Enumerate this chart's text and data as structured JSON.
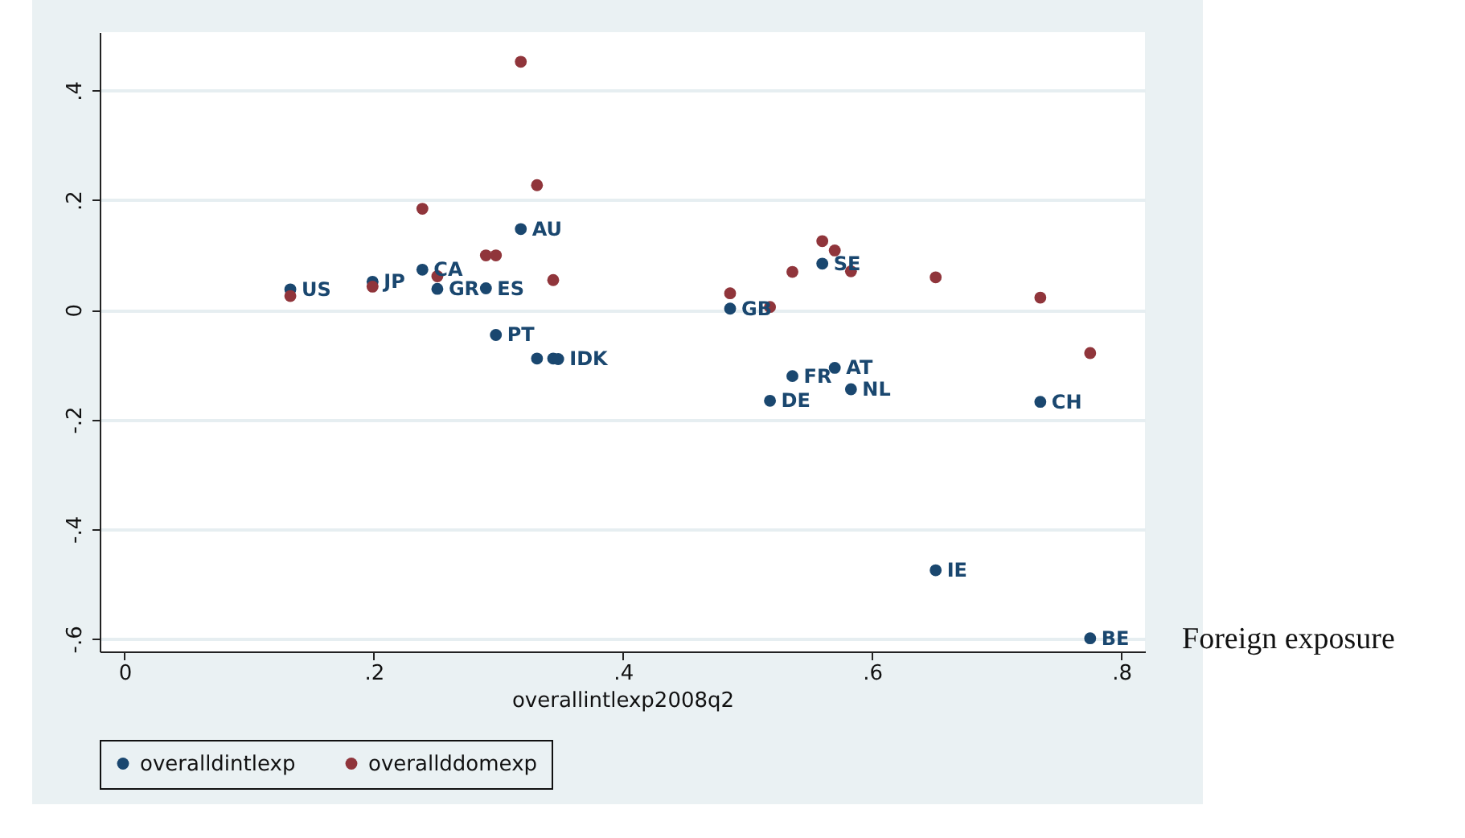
{
  "chart_data": {
    "type": "scatter",
    "xlabel": "overallintlexp2008q2",
    "x": [
      0.133,
      0.199,
      0.239,
      0.251,
      0.29,
      0.298,
      0.318,
      0.331,
      0.344,
      0.348,
      0.486,
      0.518,
      0.536,
      0.56,
      0.57,
      0.583,
      0.651,
      0.735,
      0.775
    ],
    "series": [
      {
        "name": "overalldintlexp",
        "color": "#1a476f",
        "values": [
          0.037,
          0.051,
          0.073,
          0.038,
          0.039,
          -0.046,
          0.147,
          -0.089,
          -0.089,
          -0.09,
          0.002,
          -0.166,
          -0.121,
          0.084,
          -0.106,
          -0.145,
          -0.475,
          -0.168,
          -0.599
        ]
      },
      {
        "name": "overallddomexp",
        "color": "#90353b",
        "values": [
          0.025,
          0.042,
          0.184,
          0.061,
          0.099,
          0.099,
          0.452,
          0.227,
          0.054,
          null,
          0.03,
          0.005,
          0.069,
          0.125,
          0.108,
          0.07,
          0.059,
          0.022,
          -0.079
        ]
      }
    ],
    "xlim": [
      -0.02,
      0.819
    ],
    "ylim": [
      -0.623,
      0.506
    ],
    "xticks": [
      0,
      {
        "value": 0.2,
        "label": ".2"
      },
      {
        "value": 0.4,
        "label": ".4"
      },
      {
        "value": 0.6,
        "label": ".6"
      },
      {
        "value": 0.8,
        "label": ".8"
      }
    ],
    "yticks": [
      {
        "value": -0.6,
        "label": "-.6"
      },
      {
        "value": -0.4,
        "label": "-.4"
      },
      {
        "value": -0.2,
        "label": "-.2"
      },
      0,
      {
        "value": 0.2,
        "label": ".2"
      },
      {
        "value": 0.4,
        "label": ".4"
      }
    ],
    "grid": "y",
    "legend": "bottom",
    "marker": "circle",
    "annotations": [
      {
        "text": "US",
        "x": 0.133,
        "y": 0.037
      },
      {
        "text": "JP",
        "x": 0.199,
        "y": 0.051
      },
      {
        "text": "CA",
        "x": 0.239,
        "y": 0.073
      },
      {
        "text": "GR",
        "x": 0.251,
        "y": 0.038
      },
      {
        "text": "ES",
        "x": 0.29,
        "y": 0.039
      },
      {
        "text": "PT",
        "x": 0.298,
        "y": -0.046
      },
      {
        "text": "AU",
        "x": 0.318,
        "y": 0.147
      },
      {
        "text": "IDK",
        "x": 0.348,
        "y": -0.09
      },
      {
        "text": "GB",
        "x": 0.486,
        "y": 0.002
      },
      {
        "text": "DE",
        "x": 0.518,
        "y": -0.166
      },
      {
        "text": "FR",
        "x": 0.536,
        "y": -0.121
      },
      {
        "text": "SE",
        "x": 0.56,
        "y": 0.084
      },
      {
        "text": "AT",
        "x": 0.57,
        "y": -0.106
      },
      {
        "text": "NL",
        "x": 0.583,
        "y": -0.145
      },
      {
        "text": "IE",
        "x": 0.651,
        "y": -0.475
      },
      {
        "text": "CH",
        "x": 0.735,
        "y": -0.168
      },
      {
        "text": "BE",
        "x": 0.775,
        "y": -0.599
      },
      "Foreign exposure"
    ]
  }
}
